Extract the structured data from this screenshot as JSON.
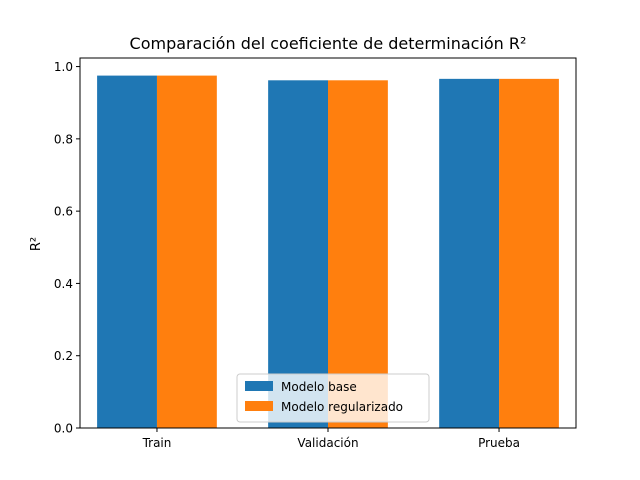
{
  "chart_data": {
    "type": "bar",
    "title": "Comparación del coeficiente de determinación R²",
    "xlabel": "",
    "ylabel": "R²",
    "categories": [
      "Train",
      "Validación",
      "Prueba"
    ],
    "series": [
      {
        "name": "Modelo base",
        "values": [
          0.975,
          0.962,
          0.966
        ],
        "color": "#1f77b4"
      },
      {
        "name": "Modelo regularizado",
        "values": [
          0.975,
          0.962,
          0.966
        ],
        "color": "#ff7f0e"
      }
    ],
    "ylim": [
      0,
      1.0237
    ],
    "yticks": [
      0.0,
      0.2,
      0.4,
      0.6,
      0.8,
      1.0
    ],
    "ytick_labels": [
      "0.0",
      "0.2",
      "0.4",
      "0.6",
      "0.8",
      "1.0"
    ],
    "grid": false,
    "legend_position": "lower-center"
  }
}
